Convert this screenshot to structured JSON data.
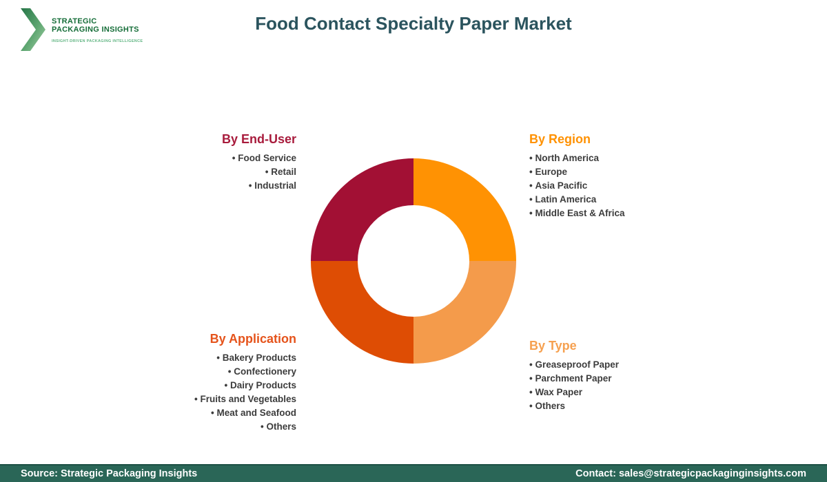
{
  "logo": {
    "name_line1": "STRATEGIC",
    "name_line2": "PACKAGING INSIGHTS",
    "tagline": "INSIGHT-DRIVEN PACKAGING INTELLIGENCE",
    "chevron_icon": "chevron-right-icon",
    "brand_green_dark": "#156D38",
    "brand_green_light": "#62B583"
  },
  "title": {
    "text": "Food Contact Specialty Paper Market",
    "color": "#2B545E"
  },
  "chart_data": {
    "type": "pie",
    "subtype": "donut",
    "title": "Food Contact Specialty Paper Market",
    "inner_radius_ratio": 0.54,
    "legend_position": "around-chart",
    "segments": [
      {
        "label": "By Region",
        "value": 25,
        "color": "#FF9203",
        "position": "top-right"
      },
      {
        "label": "By Type",
        "value": 25,
        "color": "#F49B4B",
        "position": "bottom-right"
      },
      {
        "label": "By Application",
        "value": 25,
        "color": "#DE4D04",
        "position": "bottom-left"
      },
      {
        "label": "By End-User",
        "value": 25,
        "color": "#A21034",
        "position": "top-left"
      }
    ]
  },
  "groups": {
    "end_user": {
      "title": "By End-User",
      "color": "#A81B3C",
      "items": [
        "Food Service",
        "Retail",
        "Industrial"
      ]
    },
    "region": {
      "title": "By Region",
      "color": "#FF9203",
      "items": [
        "North America",
        "Europe",
        "Asia Pacific",
        "Latin America",
        "Middle East & Africa"
      ]
    },
    "application": {
      "title": "By Application",
      "color": "#E5531B",
      "items": [
        "Bakery Products",
        "Confectionery",
        "Dairy Products",
        "Fruits and Vegetables",
        "Meat and Seafood",
        "Others"
      ]
    },
    "type": {
      "title": "By Type",
      "color": "#F6A04F",
      "items": [
        "Greaseproof Paper",
        "Parchment Paper",
        "Wax Paper",
        "Others"
      ]
    }
  },
  "footer": {
    "source": "Source: Strategic Packaging Insights",
    "contact": "Contact: sales@strategicpackaginginsights.com",
    "background": "#2A6657"
  }
}
